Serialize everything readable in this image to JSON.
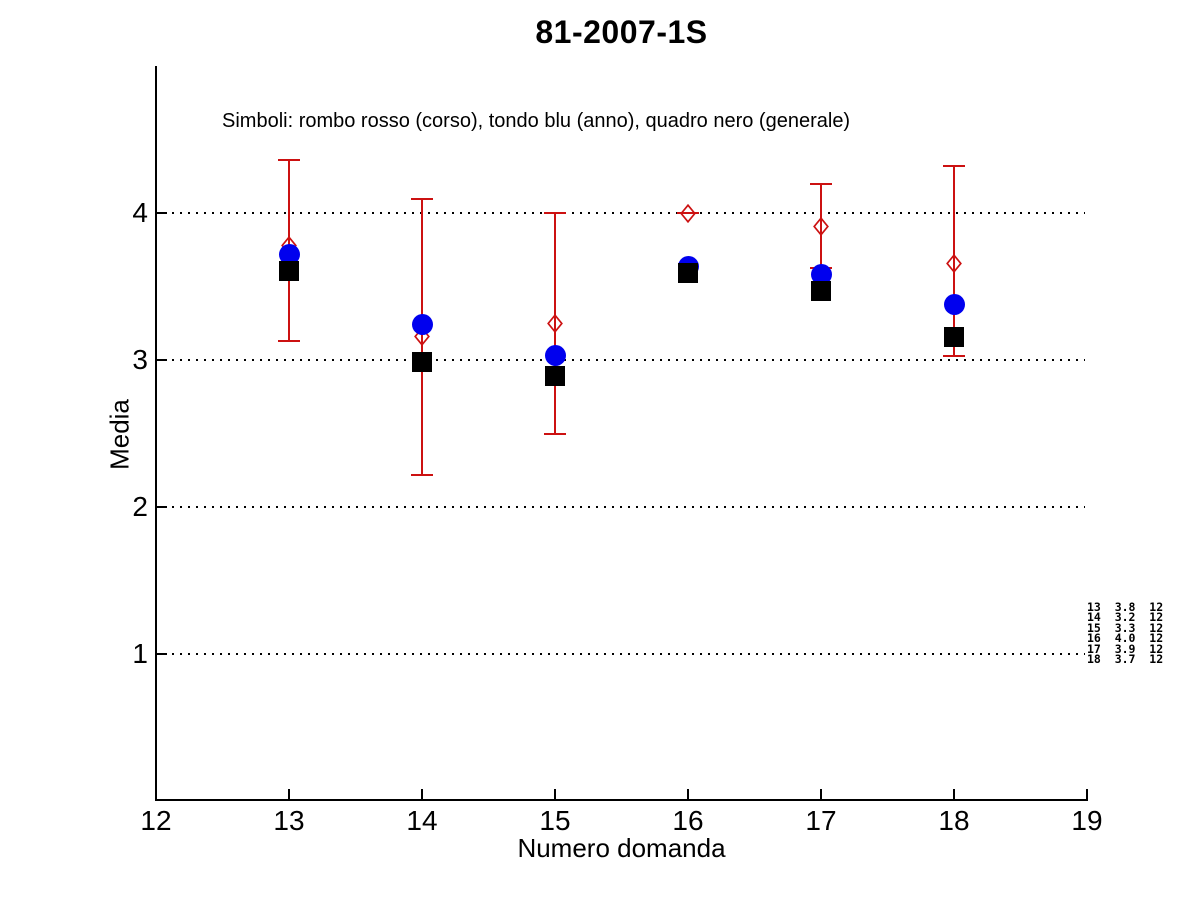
{
  "chart_data": {
    "type": "scatter",
    "title": "81-2007-1S",
    "subtitle": "Simboli: rombo rosso (corso), tondo blu (anno), quadro nero (generale)",
    "xlabel": "Numero domanda",
    "ylabel": "Media",
    "xlim": [
      12,
      19
    ],
    "ylim": [
      0,
      5
    ],
    "xticks": [
      12,
      13,
      14,
      15,
      16,
      17,
      18,
      19
    ],
    "yticks": [
      1,
      2,
      3,
      4
    ],
    "grid": "horizontal dotted lines at yticks",
    "x": [
      13,
      14,
      15,
      16,
      17,
      18
    ],
    "series": [
      {
        "name": "corso",
        "symbol": "rombo rosso",
        "marker": "open-diamond",
        "color": "#cc1111",
        "values": [
          3.78,
          3.16,
          3.25,
          4.0,
          3.91,
          3.66
        ],
        "err_low": [
          3.13,
          2.22,
          2.5,
          4.0,
          3.63,
          3.03
        ],
        "err_high": [
          4.36,
          4.1,
          4.0,
          4.0,
          4.2,
          4.32
        ]
      },
      {
        "name": "anno",
        "symbol": "tondo blu",
        "marker": "filled-circle",
        "color": "#0000ee",
        "values": [
          3.72,
          3.24,
          3.03,
          3.64,
          3.58,
          3.38
        ]
      },
      {
        "name": "generale",
        "symbol": "quadro nero",
        "marker": "filled-square",
        "color": "#000000",
        "values": [
          3.61,
          2.99,
          2.89,
          3.59,
          3.47,
          3.16
        ]
      }
    ]
  },
  "stats_table": {
    "rows": [
      [
        "13",
        "3.8",
        "12"
      ],
      [
        "14",
        "3.2",
        "12"
      ],
      [
        "15",
        "3.3",
        "12"
      ],
      [
        "16",
        "4.0",
        "12"
      ],
      [
        "17",
        "3.9",
        "12"
      ],
      [
        "18",
        "3.7",
        "12"
      ]
    ]
  },
  "colors": {
    "red": "#cc1111",
    "blue": "#0000ee",
    "black": "#000000"
  }
}
